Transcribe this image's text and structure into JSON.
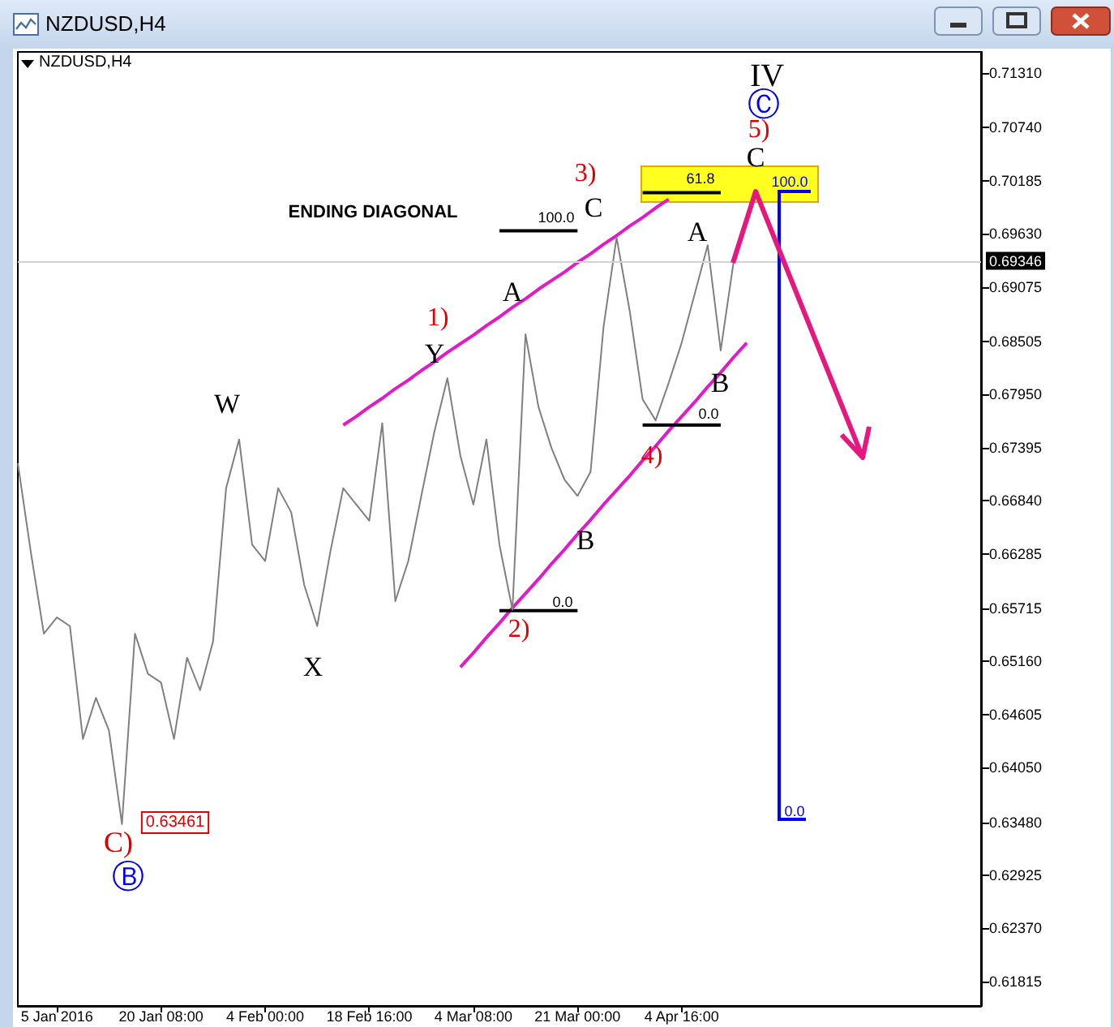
{
  "chart_data": {
    "type": "line",
    "title": "NZDUSD,H4",
    "subtitle": "NZDUSD,H4",
    "categories": [
      null,
      null,
      null,
      "5 Jan 2016",
      null,
      null,
      null,
      null,
      null,
      null,
      null,
      "20 Jan 08:00",
      null,
      null,
      null,
      null,
      null,
      null,
      null,
      "4 Feb 00:00",
      null,
      null,
      null,
      null,
      null,
      null,
      null,
      "18 Feb 16:00",
      null,
      null,
      null,
      null,
      null,
      null,
      null,
      "4 Mar 08:00",
      null,
      null,
      null,
      null,
      null,
      null,
      null,
      "21 Mar 00:00",
      null,
      null,
      null,
      null,
      null,
      null,
      null,
      "4 Apr 16:00",
      null,
      null,
      null,
      null,
      null,
      null,
      null,
      null,
      null,
      null,
      null,
      null,
      null,
      null,
      null,
      null,
      null,
      null,
      null,
      null,
      null,
      null,
      null
    ],
    "ylim": [
      0.6156,
      0.7153
    ],
    "yticks": [
      {
        "value": 0.61815,
        "label": "0.61815"
      },
      {
        "value": 0.6237,
        "label": "0.62370"
      },
      {
        "value": 0.62925,
        "label": "0.62925"
      },
      {
        "value": 0.6348,
        "label": "0.63480"
      },
      {
        "value": 0.6405,
        "label": "0.64050"
      },
      {
        "value": 0.64605,
        "label": "0.64605"
      },
      {
        "value": 0.6516,
        "label": "0.65160"
      },
      {
        "value": 0.65715,
        "label": "0.65715"
      },
      {
        "value": 0.66285,
        "label": "0.66285"
      },
      {
        "value": 0.6684,
        "label": "0.66840"
      },
      {
        "value": 0.67395,
        "label": "0.67395"
      },
      {
        "value": 0.6795,
        "label": "0.67950"
      },
      {
        "value": 0.68505,
        "label": "0.68505"
      },
      {
        "value": 0.69075,
        "label": "0.69075"
      },
      {
        "value": 0.6963,
        "label": "0.69630"
      },
      {
        "value": 0.70185,
        "label": "0.70185"
      },
      {
        "value": 0.7074,
        "label": "0.70740"
      },
      {
        "value": 0.7131,
        "label": "0.71310"
      }
    ],
    "grid": false,
    "series": [
      {
        "color": "#808080",
        "values": [
          0.6723,
          0.663,
          0.6545,
          0.6562,
          0.6553,
          0.6435,
          0.6478,
          0.6444,
          0.63461,
          0.6545,
          0.6503,
          0.6494,
          0.6435,
          0.652,
          0.6486,
          0.6537,
          0.6697,
          0.6748,
          0.6638,
          0.6621,
          0.6697,
          0.6672,
          0.6596,
          0.6553,
          0.663,
          0.6697,
          0.668,
          0.6663,
          0.6765,
          0.6579,
          0.6621,
          0.6689,
          0.6756,
          0.6812,
          0.6731,
          0.668,
          0.6748,
          0.6638,
          0.657,
          0.6858,
          0.6782,
          0.6739,
          0.6706,
          0.6689,
          0.6714,
          0.6866,
          0.6959,
          0.6883,
          0.679,
          0.6768,
          0.6807,
          0.6849,
          0.69,
          0.6951,
          0.6841,
          0.69346,
          null,
          null,
          null,
          null,
          null,
          null,
          null,
          null,
          null,
          null,
          null,
          null,
          null,
          null,
          null,
          null,
          null,
          null,
          null
        ]
      },
      {
        "color": "#e21bc8",
        "values": [
          null,
          null,
          null,
          null,
          null,
          null,
          null,
          null,
          null,
          null,
          null,
          null,
          null,
          null,
          null,
          null,
          null,
          null,
          null,
          null,
          null,
          null,
          null,
          null,
          null,
          0.6763,
          0.6772,
          0.6782,
          0.6791,
          0.6801,
          0.681,
          0.682,
          0.6829,
          0.6839,
          0.6848,
          0.6857,
          0.6867,
          0.6876,
          0.6886,
          0.6895,
          0.6905,
          0.6914,
          0.6923,
          0.6933,
          0.6942,
          0.6952,
          0.6961,
          0.6971,
          0.698,
          0.699,
          0.6999,
          null,
          null,
          null,
          null,
          null,
          null,
          null,
          null,
          null,
          null,
          null,
          null,
          null,
          null,
          null,
          null,
          null,
          null,
          null,
          null,
          null,
          null,
          null,
          null
        ]
      },
      {
        "color": "#e21bc8",
        "values": [
          null,
          null,
          null,
          null,
          null,
          null,
          null,
          null,
          null,
          null,
          null,
          null,
          null,
          null,
          null,
          null,
          null,
          null,
          null,
          null,
          null,
          null,
          null,
          null,
          null,
          null,
          null,
          null,
          null,
          null,
          null,
          null,
          null,
          null,
          0.651,
          0.6525,
          0.6541,
          0.6556,
          0.6572,
          0.6587,
          0.6602,
          0.6618,
          0.6633,
          0.6649,
          0.6664,
          0.668,
          0.6695,
          0.671,
          0.6726,
          0.6741,
          0.6757,
          0.6772,
          0.6787,
          0.6803,
          0.6818,
          0.6834,
          0.6849,
          null,
          null,
          null,
          null,
          null,
          null,
          null,
          null,
          null,
          null,
          null,
          null,
          null,
          null,
          null,
          null,
          null,
          null
        ]
      },
      {
        "color": "#000000",
        "values": [
          null,
          null,
          null,
          null,
          null,
          null,
          null,
          null,
          null,
          null,
          null,
          null,
          null,
          null,
          null,
          null,
          null,
          null,
          null,
          null,
          null,
          null,
          null,
          null,
          null,
          null,
          null,
          null,
          null,
          null,
          null,
          null,
          null,
          null,
          null,
          null,
          null,
          0.6966,
          0.6966,
          0.6966,
          0.6966,
          0.6966,
          0.6966,
          0.6966,
          null,
          null,
          null,
          null,
          null,
          null,
          null,
          null,
          null,
          null,
          null,
          null,
          null,
          null,
          null,
          null,
          null,
          null,
          null,
          null,
          null,
          null,
          null,
          null,
          null,
          null,
          null,
          null,
          null,
          null,
          null
        ]
      },
      {
        "color": "#000000",
        "values": [
          null,
          null,
          null,
          null,
          null,
          null,
          null,
          null,
          null,
          null,
          null,
          null,
          null,
          null,
          null,
          null,
          null,
          null,
          null,
          null,
          null,
          null,
          null,
          null,
          null,
          null,
          null,
          null,
          null,
          null,
          null,
          null,
          null,
          null,
          null,
          null,
          null,
          0.6569,
          0.6569,
          0.6569,
          0.6569,
          0.6569,
          0.6569,
          0.6569,
          null,
          null,
          null,
          null,
          null,
          null,
          null,
          null,
          null,
          null,
          null,
          null,
          null,
          null,
          null,
          null,
          null,
          null,
          null,
          null,
          null,
          null,
          null,
          null,
          null,
          null,
          null,
          null,
          null,
          null,
          null
        ]
      },
      {
        "color": "#000000",
        "values": [
          null,
          null,
          null,
          null,
          null,
          null,
          null,
          null,
          null,
          null,
          null,
          null,
          null,
          null,
          null,
          null,
          null,
          null,
          null,
          null,
          null,
          null,
          null,
          null,
          null,
          null,
          null,
          null,
          null,
          null,
          null,
          null,
          null,
          null,
          null,
          null,
          null,
          null,
          null,
          null,
          null,
          null,
          null,
          null,
          null,
          null,
          null,
          null,
          0.7006,
          0.7006,
          0.7006,
          0.7006,
          0.7006,
          0.7006,
          0.7006,
          null,
          null,
          null,
          null,
          null,
          null,
          null,
          null,
          null,
          null,
          null,
          null,
          null,
          null,
          null,
          null,
          null,
          null,
          null,
          null
        ]
      },
      {
        "color": "#000000",
        "values": [
          null,
          null,
          null,
          null,
          null,
          null,
          null,
          null,
          null,
          null,
          null,
          null,
          null,
          null,
          null,
          null,
          null,
          null,
          null,
          null,
          null,
          null,
          null,
          null,
          null,
          null,
          null,
          null,
          null,
          null,
          null,
          null,
          null,
          null,
          null,
          null,
          null,
          null,
          null,
          null,
          null,
          null,
          null,
          null,
          null,
          null,
          null,
          null,
          0.6763,
          0.6763,
          0.6763,
          0.6763,
          0.6763,
          0.6763,
          0.6763,
          null,
          null,
          null,
          null,
          null,
          null,
          null,
          null,
          null,
          null,
          null,
          null,
          null,
          null,
          null,
          null,
          null,
          null,
          null,
          null
        ]
      }
    ],
    "ref_lines": [
      {
        "axis": "y",
        "value": 0.69346,
        "label": "0.69346",
        "color": "#d0d0e0"
      }
    ],
    "annotations": [
      "ENDING DIAGONAL",
      "W",
      "X",
      "Y",
      "1)",
      "A",
      "2)",
      "B",
      "3)",
      "C",
      "4)",
      "A",
      "B",
      "C",
      "5)",
      "Ⓒ",
      "IV",
      "C)",
      "Ⓑ",
      "0.63461",
      "100.0",
      "0.0",
      "61.8",
      "100.0",
      "0.0",
      "0.0"
    ]
  }
}
